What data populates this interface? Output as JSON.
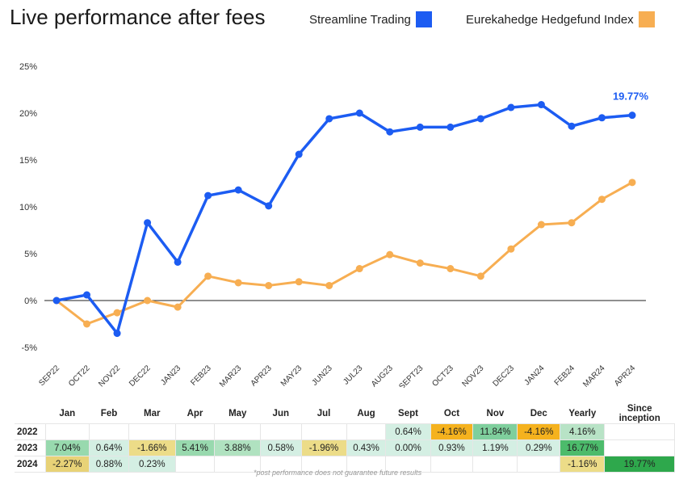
{
  "title": "Live performance after fees",
  "legend": [
    {
      "name": "Streamline Trading",
      "color": "#1c5cf2"
    },
    {
      "name": "Eurekahedge Hedgefund Index",
      "color": "#f7ae52"
    }
  ],
  "chart_data": {
    "type": "line",
    "title": "Live performance after fees",
    "categories": [
      "SEP22",
      "OCT22",
      "NOV22",
      "DEC22",
      "JAN23",
      "FEB23",
      "MAR23",
      "APR23",
      "MAY23",
      "JUN23",
      "JUL23",
      "AUG23",
      "SEPT23",
      "OCT23",
      "NOV23",
      "DEC23",
      "JAN24",
      "FEB24",
      "MAR24",
      "APR24"
    ],
    "y_ticks": [
      "25%",
      "20%",
      "15%",
      "10%",
      "5%",
      "0%",
      "-5%"
    ],
    "ylim": [
      -5,
      25
    ],
    "legend_position": "top-right",
    "grid": false,
    "series": [
      {
        "name": "Streamline Trading",
        "color": "#1c5cf2",
        "values": [
          0,
          0.6,
          -3.5,
          8.3,
          4.1,
          11.2,
          11.8,
          10.1,
          15.6,
          19.4,
          20.0,
          18.0,
          18.5,
          18.5,
          19.4,
          20.6,
          20.9,
          18.6,
          19.5,
          19.77
        ]
      },
      {
        "name": "Eurekahedge Hedgefund Index",
        "color": "#f7ae52",
        "values": [
          0,
          -2.5,
          -1.3,
          0.0,
          -0.7,
          2.6,
          1.9,
          1.6,
          2.0,
          1.6,
          3.4,
          4.9,
          4.0,
          3.4,
          2.6,
          5.5,
          8.1,
          8.3,
          10.8,
          12.6
        ]
      }
    ],
    "annotation": {
      "text": "19.77%",
      "series": 0,
      "index": 19
    }
  },
  "table": {
    "headers": [
      "",
      "Jan",
      "Feb",
      "Mar",
      "Apr",
      "May",
      "Jun",
      "Jul",
      "Aug",
      "Sept",
      "Oct",
      "Nov",
      "Dec",
      "Yearly",
      "Since inception"
    ],
    "rows": [
      {
        "year": "2022",
        "cells": [
          "",
          "",
          "",
          "",
          "",
          "",
          "",
          "",
          "0.64%",
          "-4.16%",
          "11.84%",
          "-4.16%",
          "4.16%",
          ""
        ],
        "colors": [
          "",
          "",
          "",
          "",
          "",
          "",
          "",
          "",
          "#d4efe3",
          "#f5b21e",
          "#7fcf9d",
          "#f5b21e",
          "#b8e3c6",
          ""
        ]
      },
      {
        "year": "2023",
        "cells": [
          "7.04%",
          "0.64%",
          "-1.66%",
          "5.41%",
          "3.88%",
          "0.58%",
          "-1.96%",
          "0.43%",
          "0.00%",
          "0.93%",
          "1.19%",
          "0.29%",
          "16.77%",
          ""
        ],
        "colors": [
          "#98d9ae",
          "#d4efe3",
          "#ecdc88",
          "#98d9ae",
          "#b0e2c0",
          "#d4efe3",
          "#ecdc88",
          "#d4efe3",
          "#d4efe3",
          "#d4efe3",
          "#d4efe3",
          "#d4efe3",
          "#4cbb6b",
          ""
        ]
      },
      {
        "year": "2024",
        "cells": [
          "-2.27%",
          "0.88%",
          "0.23%",
          "",
          "",
          "",
          "",
          "",
          "",
          "",
          "",
          "",
          "-1.16%",
          "19.77%"
        ],
        "colors": [
          "#e8d277",
          "#d4efe3",
          "#d4efe3",
          "",
          "",
          "",
          "",
          "",
          "",
          "",
          "",
          "",
          "#ecdc88",
          "#2ea84c"
        ]
      }
    ]
  },
  "disclaimer": "*post performance does not guarantee future results"
}
